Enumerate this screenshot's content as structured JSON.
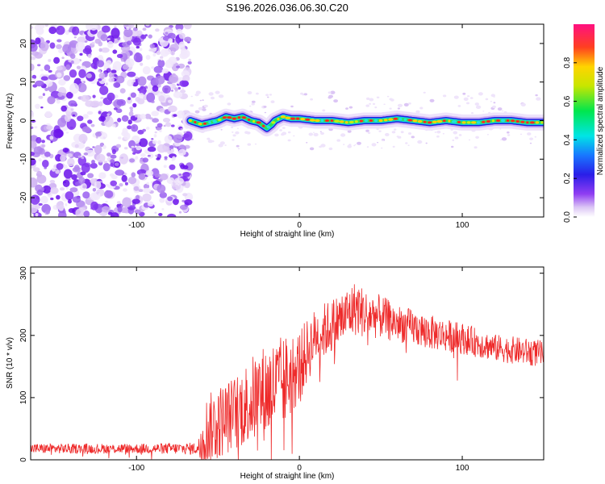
{
  "title": "S196.2026.036.06.30.C20",
  "chart_data": [
    {
      "type": "heatmap",
      "name": "spectrogram",
      "xlabel": "Height of straight line (km)",
      "ylabel": "Frequency (Hz)",
      "xlim": [
        -165,
        150
      ],
      "ylim": [
        -25,
        25
      ],
      "xticks": [
        -100,
        0,
        100
      ],
      "yticks": [
        -20,
        -10,
        0,
        10,
        20
      ],
      "noise_region": {
        "x_start": -165,
        "x_end": -67,
        "description": "broadband low-amplitude noise"
      },
      "signal_track": {
        "x": [
          -67,
          -60,
          -50,
          -45,
          -40,
          -35,
          -30,
          -25,
          -20,
          -17,
          -15,
          -10,
          -5,
          0,
          10,
          20,
          30,
          40,
          50,
          60,
          70,
          80,
          90,
          100,
          110,
          120,
          130,
          140,
          150
        ],
        "freq": [
          0,
          -1,
          0,
          1,
          0.5,
          1,
          0,
          -0.5,
          -2,
          -1,
          0,
          1,
          0.5,
          0.5,
          0,
          0,
          -0.5,
          0,
          0,
          0.5,
          0,
          -0.5,
          0,
          -0.5,
          -0.5,
          0,
          0,
          -0.5,
          -0.5
        ]
      },
      "colorbar": {
        "label": "Normalized spectral amplitude",
        "range": [
          0,
          1
        ],
        "ticks": [
          0.0,
          0.2,
          0.4,
          0.6,
          0.8
        ],
        "tick_labels": [
          "0.0",
          "0.2",
          "0.4",
          "0.6",
          "0.8"
        ]
      }
    },
    {
      "type": "line",
      "name": "snr",
      "xlabel": "Height of straight line (km)",
      "ylabel": "SNR (10 * v/v)",
      "xlim": [
        -165,
        150
      ],
      "ylim": [
        0,
        310
      ],
      "xticks": [
        -100,
        0,
        100
      ],
      "yticks": [
        0,
        100,
        200,
        300
      ],
      "color": "#ee2a2a",
      "envelope": {
        "x": [
          -165,
          -100,
          -62,
          -60,
          -50,
          -40,
          -30,
          -20,
          -10,
          0,
          10,
          20,
          30,
          35,
          40,
          50,
          60,
          80,
          100,
          120,
          150
        ],
        "mean": [
          18,
          18,
          18,
          40,
          60,
          75,
          95,
          110,
          125,
          150,
          200,
          215,
          235,
          245,
          235,
          230,
          220,
          205,
          195,
          180,
          170
        ],
        "spread": [
          8,
          8,
          10,
          55,
          60,
          60,
          70,
          80,
          75,
          60,
          45,
          45,
          45,
          45,
          40,
          35,
          30,
          28,
          25,
          22,
          22
        ]
      }
    }
  ]
}
